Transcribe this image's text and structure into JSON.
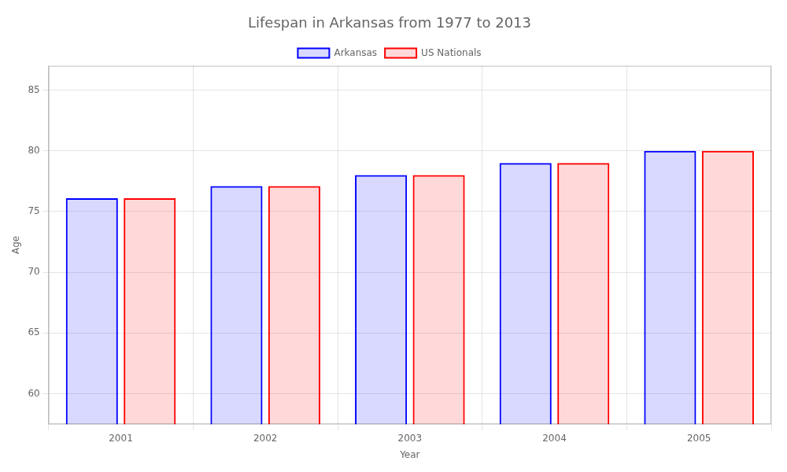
{
  "chart_data": {
    "type": "bar",
    "title": "Lifespan in Arkansas from 1977 to 2013",
    "x_label": "Year",
    "y_label": "Age",
    "categories": [
      "2001",
      "2002",
      "2003",
      "2004",
      "2005"
    ],
    "series": [
      {
        "name": "Arkansas",
        "color": "#0000ff",
        "values": [
          76.1,
          77.1,
          78.0,
          79.0,
          80.0
        ]
      },
      {
        "name": "US Nationals",
        "color": "#ff0000",
        "values": [
          76.1,
          77.1,
          78.0,
          79.0,
          80.0
        ]
      }
    ],
    "ylim": [
      57.5,
      87
    ],
    "yticks": [
      60,
      65,
      70,
      75,
      80,
      85
    ],
    "grid": true,
    "legend": "top"
  }
}
